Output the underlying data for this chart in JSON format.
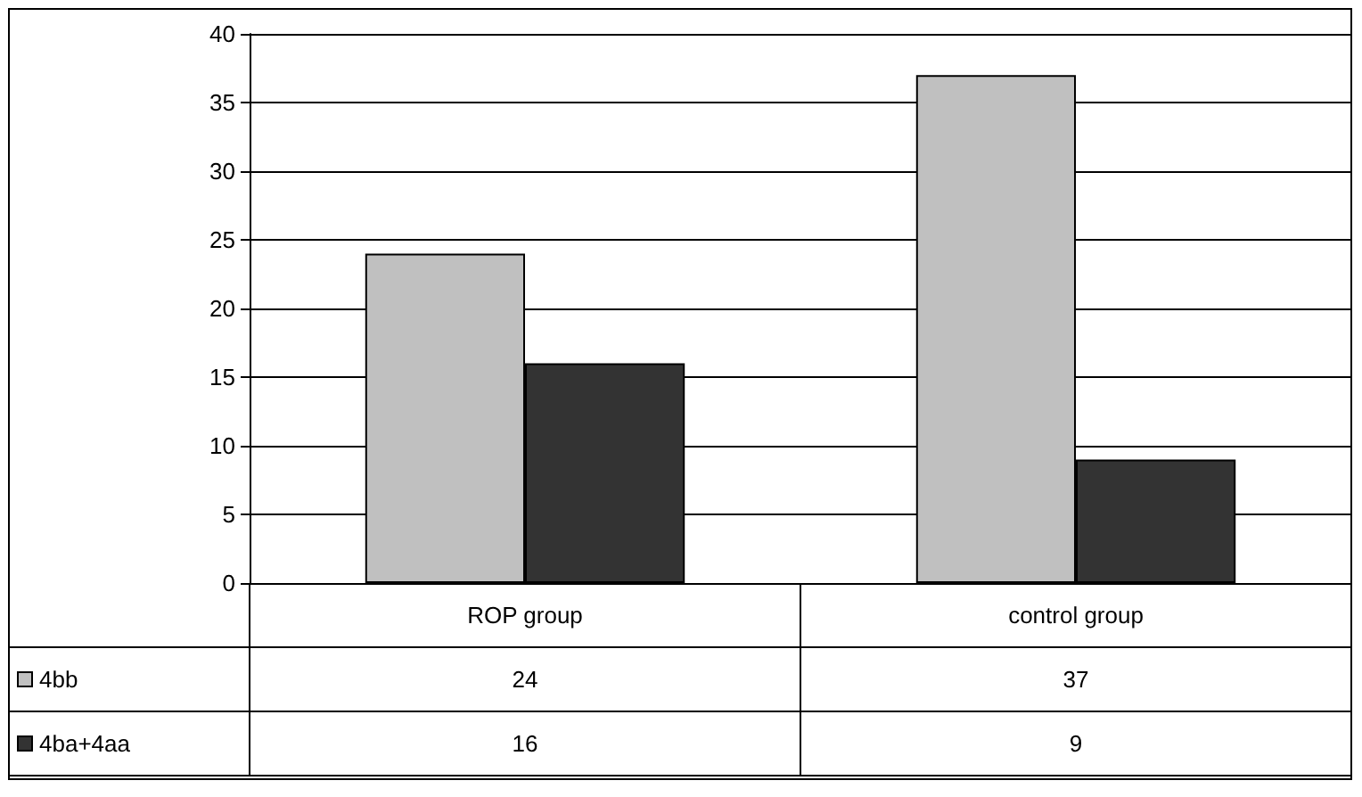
{
  "chart_data": {
    "type": "bar",
    "categories": [
      "ROP group",
      "control group"
    ],
    "series": [
      {
        "name": "4bb",
        "color": "#c0c0c0",
        "values": [
          24,
          37
        ]
      },
      {
        "name": "4ba+4aa",
        "color": "#333333",
        "values": [
          16,
          9
        ]
      }
    ],
    "ylim": [
      0,
      40
    ],
    "yticks": [
      0,
      5,
      10,
      15,
      20,
      25,
      30,
      35,
      40
    ],
    "grid": "y",
    "legend": "bottom",
    "data_labels": true
  }
}
